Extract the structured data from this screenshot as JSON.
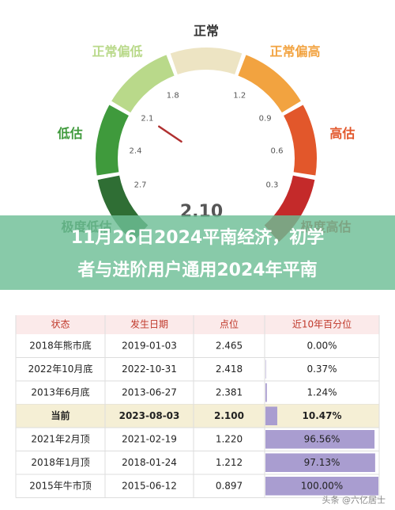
{
  "gauge": {
    "title": "正常",
    "segments": [
      {
        "name": "极度低估",
        "color": "#2f6e34"
      },
      {
        "name": "低估",
        "color": "#3f9a3c"
      },
      {
        "name": "正常偏低",
        "color": "#b9d98a"
      },
      {
        "name": "正常",
        "color": "#ede4c3"
      },
      {
        "name": "正常偏高",
        "color": "#f2a340"
      },
      {
        "name": "高估",
        "color": "#e2572b"
      },
      {
        "name": "极度高估",
        "color": "#c42a2a"
      }
    ],
    "lim": [
      3,
      0
    ],
    "ticks": [
      2.7,
      2.4,
      2.1,
      1.8,
      1.2,
      0.9,
      0.6,
      0.3
    ],
    "value": 2.1,
    "value_label": "2.10"
  },
  "banner": {
    "lines": [
      "11月26日2024平南经济，初学",
      "者与进阶用户通用2024年平南"
    ]
  },
  "table": {
    "columns": [
      "状态",
      "发生日期",
      "点位",
      "近10年百分位"
    ],
    "rows": [
      {
        "state": "2018年熊市底",
        "date": "2019-01-03",
        "level": "2.465",
        "percentile": 0,
        "percentile_label": "0.00%"
      },
      {
        "state": "2022年10月底",
        "date": "2022-10-31",
        "level": "2.418",
        "percentile": 0.37,
        "percentile_label": "0.37%"
      },
      {
        "state": "2013年6月底",
        "date": "2013-06-27",
        "level": "2.381",
        "percentile": 1.24,
        "percentile_label": "1.24%"
      },
      {
        "state": "当前",
        "date": "2023-08-03",
        "level": "2.100",
        "percentile": 10.47,
        "percentile_label": "10.47%"
      },
      {
        "state": "2021年2月顶",
        "date": "2021-02-19",
        "level": "1.220",
        "percentile": 96.56,
        "percentile_label": "96.56%"
      },
      {
        "state": "2018年1月顶",
        "date": "2018-01-24",
        "level": "1.212",
        "percentile": 97.13,
        "percentile_label": "97.13%"
      },
      {
        "state": "2015年牛市顶",
        "date": "2015-06-12",
        "level": "0.897",
        "percentile": 100,
        "percentile_label": "100.00%"
      }
    ],
    "current_row": 3,
    "bar_max": 100,
    "bar_color": "#a99dd0"
  },
  "watermark": "头条 @六亿居士"
}
